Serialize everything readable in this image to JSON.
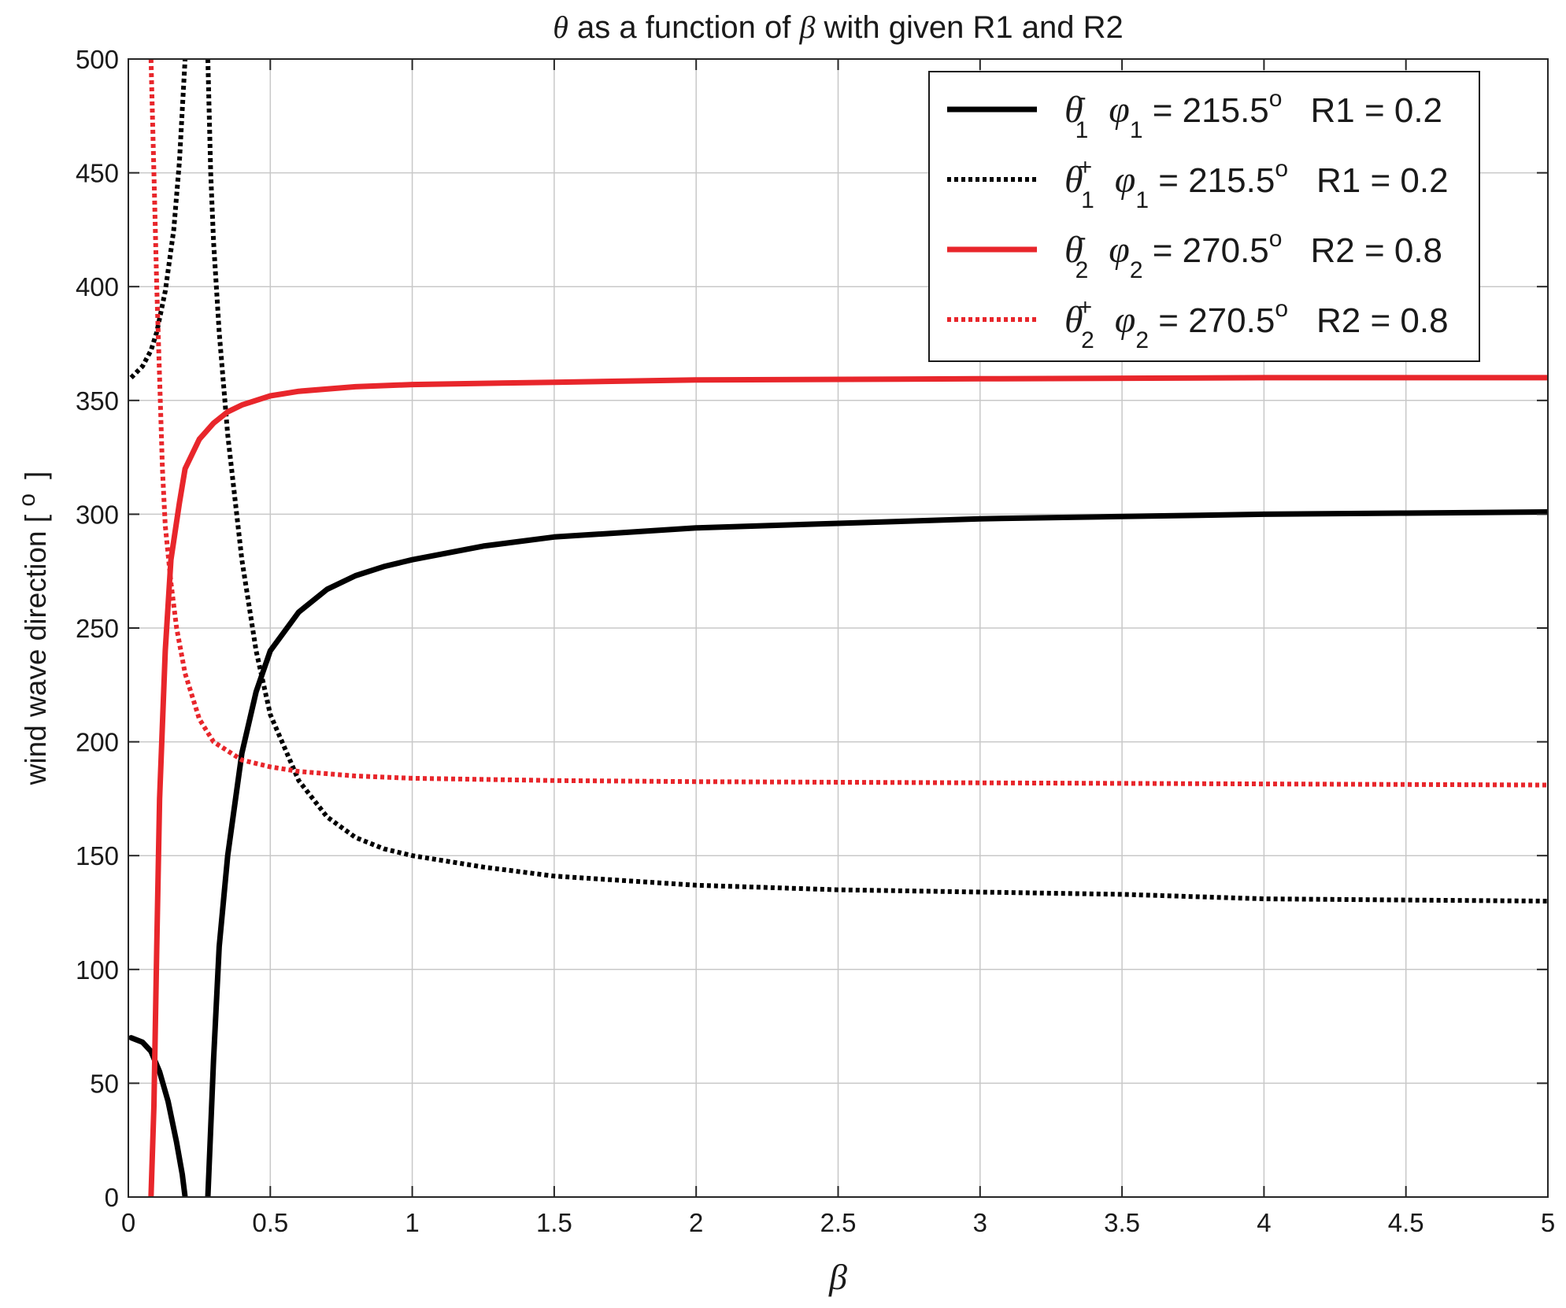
{
  "chart_data": {
    "type": "line",
    "title": {
      "sym1": "θ",
      "mid": " as a function of ",
      "sym2": "β",
      "end": " with given R1 and R2"
    },
    "xlabel": "β",
    "ylabel": "wind wave direction [  ",
    "ylabel_unit": "o",
    "ylabel_close": "]",
    "xlim": [
      0,
      5
    ],
    "ylim": [
      0,
      500
    ],
    "xticks": [
      "0",
      "0.5",
      "1",
      "1.5",
      "2",
      "2.5",
      "3",
      "3.5",
      "4",
      "4.5",
      "5"
    ],
    "yticks": [
      "0",
      "50",
      "100",
      "150",
      "200",
      "250",
      "300",
      "350",
      "400",
      "450",
      "500"
    ],
    "grid": true,
    "legend_position": "top-right",
    "colors": {
      "black": "#000000",
      "red": "#e8262b",
      "grid": "#c8c8c8"
    },
    "series": [
      {
        "name": "θ1- φ1 = 215.5° R1 = 0.2",
        "legend": {
          "sym": "θ",
          "sup": "-",
          "sub": "1",
          "phi": "φ",
          "phisub": "1",
          "eq": " = 215.5",
          "deg": "o",
          "rlabel": "R1 = 0.2"
        },
        "color": "#000000",
        "style": "solid",
        "segments": [
          [
            [
              0.01,
              70
            ],
            [
              0.05,
              68
            ],
            [
              0.08,
              64
            ],
            [
              0.11,
              55
            ],
            [
              0.14,
              42
            ],
            [
              0.17,
              24
            ],
            [
              0.19,
              10
            ],
            [
              0.2,
              0
            ]
          ],
          [
            [
              0.28,
              0
            ],
            [
              0.3,
              60
            ],
            [
              0.32,
              110
            ],
            [
              0.35,
              150
            ],
            [
              0.4,
              195
            ],
            [
              0.45,
              222
            ],
            [
              0.5,
              240
            ],
            [
              0.6,
              257
            ],
            [
              0.7,
              267
            ],
            [
              0.8,
              273
            ],
            [
              0.9,
              277
            ],
            [
              1.0,
              280
            ],
            [
              1.25,
              286
            ],
            [
              1.5,
              290
            ],
            [
              2.0,
              294
            ],
            [
              2.5,
              296
            ],
            [
              3.0,
              298
            ],
            [
              3.5,
              299
            ],
            [
              4.0,
              300
            ],
            [
              4.5,
              300.5
            ],
            [
              5.0,
              301
            ]
          ]
        ]
      },
      {
        "name": "θ1+ φ1 = 215.5° R1 = 0.2",
        "legend": {
          "sym": "θ",
          "sup": "+",
          "sub": "1",
          "phi": "φ",
          "phisub": "1",
          "eq": " = 215.5",
          "deg": "o",
          "rlabel": "R1 = 0.2"
        },
        "color": "#000000",
        "style": "dotted",
        "segments": [
          [
            [
              0.01,
              360
            ],
            [
              0.05,
              365
            ],
            [
              0.08,
              372
            ],
            [
              0.1,
              380
            ],
            [
              0.13,
              398
            ],
            [
              0.16,
              425
            ],
            [
              0.18,
              455
            ],
            [
              0.2,
              500
            ]
          ],
          [
            [
              0.28,
              500
            ],
            [
              0.29,
              450
            ],
            [
              0.3,
              420
            ],
            [
              0.32,
              380
            ],
            [
              0.35,
              335
            ],
            [
              0.4,
              280
            ],
            [
              0.45,
              240
            ],
            [
              0.5,
              212
            ],
            [
              0.6,
              183
            ],
            [
              0.7,
              167
            ],
            [
              0.8,
              158
            ],
            [
              0.9,
              153
            ],
            [
              1.0,
              150
            ],
            [
              1.25,
              145
            ],
            [
              1.5,
              141
            ],
            [
              2.0,
              137
            ],
            [
              2.5,
              135
            ],
            [
              3.0,
              134
            ],
            [
              3.5,
              133
            ],
            [
              4.0,
              131
            ],
            [
              4.5,
              130.5
            ],
            [
              5.0,
              130
            ]
          ]
        ]
      },
      {
        "name": "θ2- φ2 = 270.5° R2 = 0.8",
        "legend": {
          "sym": "θ",
          "sup": "-",
          "sub": "2",
          "phi": "φ",
          "phisub": "2",
          "eq": " = 270.5",
          "deg": "o",
          "rlabel": "R2 = 0.8"
        },
        "color": "#e8262b",
        "style": "solid",
        "segments": [
          [
            [
              0.08,
              0
            ],
            [
              0.09,
              40
            ],
            [
              0.1,
              110
            ],
            [
              0.11,
              175
            ],
            [
              0.13,
              240
            ],
            [
              0.15,
              280
            ],
            [
              0.18,
              305
            ],
            [
              0.2,
              320
            ],
            [
              0.25,
              333
            ],
            [
              0.3,
              340
            ],
            [
              0.35,
              345
            ],
            [
              0.4,
              348
            ],
            [
              0.5,
              352
            ],
            [
              0.6,
              354
            ],
            [
              0.8,
              356
            ],
            [
              1.0,
              357
            ],
            [
              1.5,
              358
            ],
            [
              2.0,
              359
            ],
            [
              3.0,
              359.5
            ],
            [
              4.0,
              360
            ],
            [
              5.0,
              360
            ]
          ]
        ]
      },
      {
        "name": "θ2+ φ2 = 270.5° R2 = 0.8",
        "legend": {
          "sym": "θ",
          "sup": "+",
          "sub": "2",
          "phi": "φ",
          "phisub": "2",
          "eq": " = 270.5",
          "deg": "o",
          "rlabel": "R2 = 0.8"
        },
        "color": "#e8262b",
        "style": "dotted",
        "segments": [
          [
            [
              0.08,
              500
            ],
            [
              0.09,
              450
            ],
            [
              0.1,
              400
            ],
            [
              0.11,
              360
            ],
            [
              0.12,
              320
            ],
            [
              0.13,
              295
            ],
            [
              0.15,
              270
            ],
            [
              0.17,
              250
            ],
            [
              0.2,
              230
            ],
            [
              0.25,
              210
            ],
            [
              0.3,
              200
            ],
            [
              0.4,
              192
            ],
            [
              0.5,
              189
            ],
            [
              0.6,
              187
            ],
            [
              0.8,
              185
            ],
            [
              1.0,
              184
            ],
            [
              1.5,
              183
            ],
            [
              2.0,
              182.5
            ],
            [
              3.0,
              182
            ],
            [
              4.0,
              181.5
            ],
            [
              5.0,
              181
            ]
          ]
        ]
      }
    ]
  }
}
